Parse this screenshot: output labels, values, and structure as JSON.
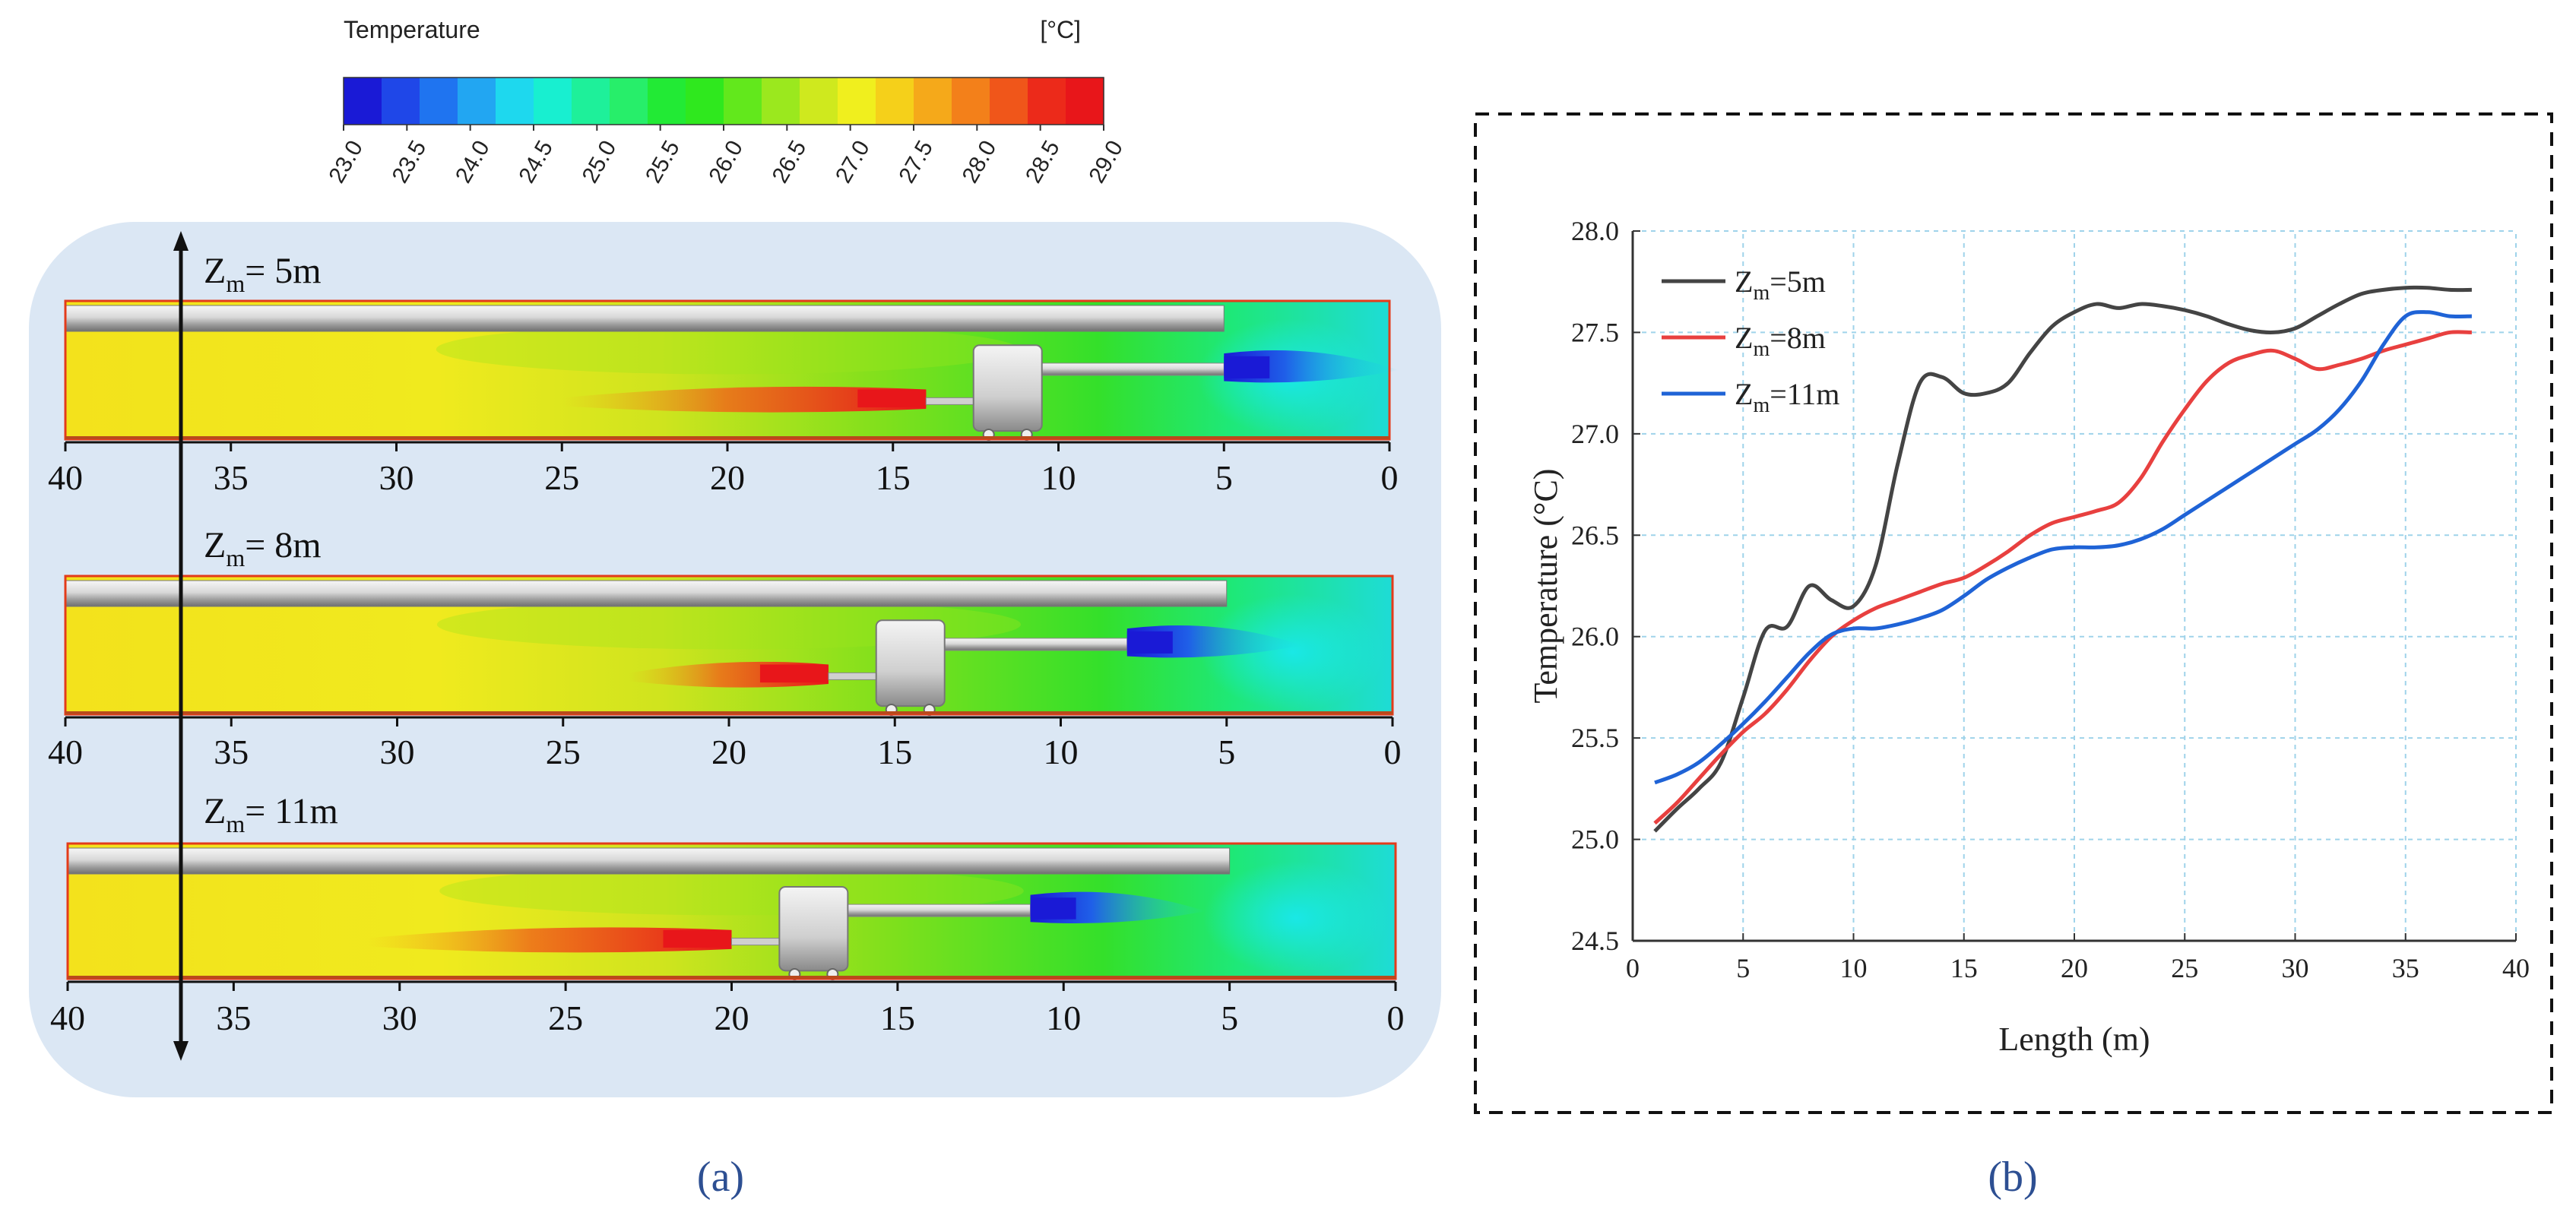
{
  "colorbar": {
    "title": "Temperature",
    "unit": "[°C]",
    "ticks": [
      "23.0",
      "23.5",
      "24.0",
      "24.5",
      "25.0",
      "25.5",
      "26.0",
      "26.5",
      "27.0",
      "27.5",
      "28.0",
      "28.5",
      "29.0"
    ],
    "colors": [
      "#1a1ad6",
      "#1f47e8",
      "#1f74f0",
      "#22a6f2",
      "#1ed8ee",
      "#18efd0",
      "#1ef09a",
      "#27ee6a",
      "#22ea35",
      "#2fe81e",
      "#62e81c",
      "#9be81e",
      "#cfe91e",
      "#f0ef1e",
      "#f5d01a",
      "#f5a91a",
      "#f3801a",
      "#f0561a",
      "#ec2a1a",
      "#e8161a"
    ]
  },
  "panel_a": {
    "label": "(a)",
    "axis_ticks": [
      "40",
      "35",
      "30",
      "25",
      "20",
      "15",
      "10",
      "5",
      "0"
    ],
    "cases": [
      {
        "z_label": "Z",
        "z_sub": "m",
        "z_value": "= 5m",
        "fire_start_m": 14,
        "fire_end_m": 25,
        "vehicle_m": 10.5,
        "duct_end_m": 5,
        "fan_duct_m": 5
      },
      {
        "z_label": "Z",
        "z_sub": "m",
        "z_value": "= 8m",
        "fire_start_m": 17,
        "fire_end_m": 23,
        "vehicle_m": 13.5,
        "duct_end_m": 5,
        "fan_duct_m": 8
      },
      {
        "z_label": "Z",
        "z_sub": "m",
        "z_value": "= 11m",
        "fire_start_m": 20,
        "fire_end_m": 31,
        "vehicle_m": 16.5,
        "duct_end_m": 5,
        "fan_duct_m": 11
      }
    ]
  },
  "panel_b": {
    "label": "(b)",
    "legend": [
      {
        "pre": "Z",
        "sub": "m",
        "post": "=5m"
      },
      {
        "pre": "Z",
        "sub": "m",
        "post": "=8m"
      },
      {
        "pre": "Z",
        "sub": "m",
        "post": "=11m"
      }
    ]
  },
  "chart_data": {
    "type": "line",
    "title": "",
    "xlabel": "Length (m)",
    "ylabel": "Temperature (°C)",
    "xlim": [
      0,
      40
    ],
    "ylim": [
      24.5,
      28.0
    ],
    "xticks": [
      "0",
      "5",
      "10",
      "15",
      "20",
      "25",
      "30",
      "35",
      "40"
    ],
    "yticks": [
      "24.5",
      "25.0",
      "25.5",
      "26.0",
      "26.5",
      "27.0",
      "27.5",
      "28.0"
    ],
    "grid": true,
    "legend_position": "top-left",
    "series": [
      {
        "name": "Zm=5m",
        "color": "#444444",
        "x": [
          1,
          2,
          3,
          4,
          5,
          6,
          7,
          8,
          9,
          10,
          11,
          12,
          13,
          14,
          15,
          16,
          17,
          18,
          19,
          20,
          21,
          22,
          23,
          24,
          25,
          26,
          27,
          28,
          29,
          30,
          31,
          32,
          33,
          34,
          35,
          36,
          37,
          38
        ],
        "y": [
          25.04,
          25.15,
          25.25,
          25.38,
          25.7,
          26.03,
          26.05,
          26.25,
          26.18,
          26.15,
          26.35,
          26.85,
          27.25,
          27.28,
          27.2,
          27.2,
          27.25,
          27.4,
          27.53,
          27.6,
          27.64,
          27.62,
          27.64,
          27.63,
          27.61,
          27.58,
          27.54,
          27.51,
          27.5,
          27.52,
          27.58,
          27.64,
          27.69,
          27.71,
          27.72,
          27.72,
          27.71,
          27.71
        ]
      },
      {
        "name": "Zm=8m",
        "color": "#e8403f",
        "x": [
          1,
          2,
          3,
          4,
          5,
          6,
          7,
          8,
          9,
          10,
          11,
          12,
          13,
          14,
          15,
          16,
          17,
          18,
          19,
          20,
          21,
          22,
          23,
          24,
          25,
          26,
          27,
          28,
          29,
          30,
          31,
          32,
          33,
          34,
          35,
          36,
          37,
          38
        ],
        "y": [
          25.08,
          25.18,
          25.3,
          25.42,
          25.53,
          25.62,
          25.74,
          25.88,
          26.0,
          26.08,
          26.14,
          26.18,
          26.22,
          26.26,
          26.29,
          26.35,
          26.42,
          26.5,
          26.56,
          26.59,
          26.62,
          26.66,
          26.78,
          26.96,
          27.12,
          27.26,
          27.35,
          27.39,
          27.41,
          27.37,
          27.32,
          27.34,
          27.37,
          27.41,
          27.44,
          27.47,
          27.5,
          27.5
        ]
      },
      {
        "name": "Zm=11m",
        "color": "#1f63d6",
        "x": [
          1,
          2,
          3,
          4,
          5,
          6,
          7,
          8,
          9,
          10,
          11,
          12,
          13,
          14,
          15,
          16,
          17,
          18,
          19,
          20,
          21,
          22,
          23,
          24,
          25,
          26,
          27,
          28,
          29,
          30,
          31,
          32,
          33,
          34,
          35,
          36,
          37,
          38
        ],
        "y": [
          25.28,
          25.32,
          25.38,
          25.47,
          25.57,
          25.68,
          25.8,
          25.92,
          26.01,
          26.04,
          26.04,
          26.06,
          26.09,
          26.13,
          26.2,
          26.28,
          26.34,
          26.39,
          26.43,
          26.44,
          26.44,
          26.45,
          26.48,
          26.53,
          26.6,
          26.67,
          26.74,
          26.81,
          26.88,
          26.95,
          27.02,
          27.12,
          27.26,
          27.44,
          27.58,
          27.6,
          27.58,
          27.58
        ]
      }
    ]
  }
}
